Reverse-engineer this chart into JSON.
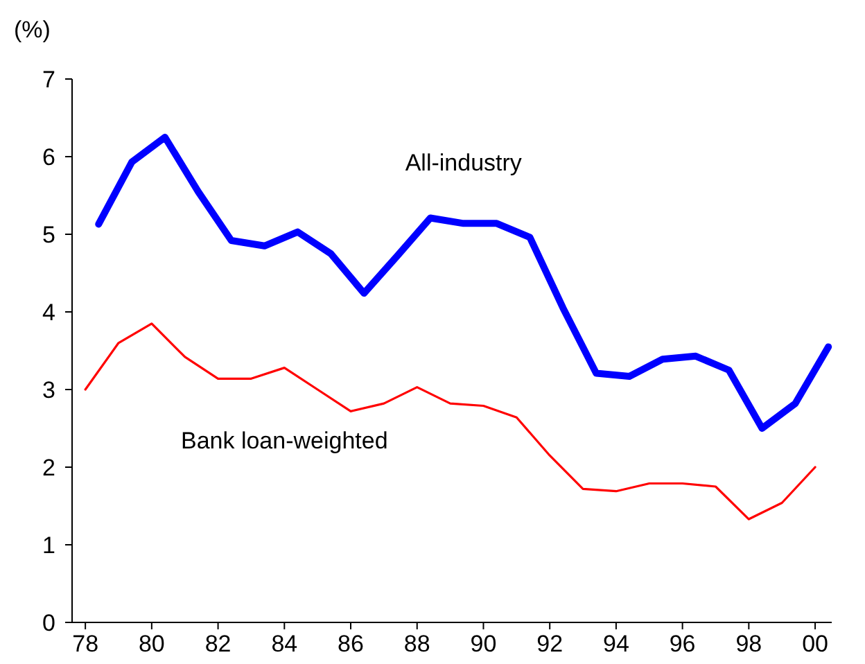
{
  "chart_data": {
    "type": "line",
    "ylabel": "(%)",
    "xlim": [
      1977.6,
      2000.5
    ],
    "xticks": [
      {
        "value": 1978,
        "label": "78"
      },
      {
        "value": 1980,
        "label": "80"
      },
      {
        "value": 1982,
        "label": "82"
      },
      {
        "value": 1984,
        "label": "84"
      },
      {
        "value": 1986,
        "label": "86"
      },
      {
        "value": 1988,
        "label": "88"
      },
      {
        "value": 1990,
        "label": "90"
      },
      {
        "value": 1992,
        "label": "92"
      },
      {
        "value": 1994,
        "label": "94"
      },
      {
        "value": 1996,
        "label": "96"
      },
      {
        "value": 1998,
        "label": "98"
      },
      {
        "value": 2000,
        "label": "00"
      }
    ],
    "ylim": [
      0,
      7
    ],
    "yticks": [
      0,
      1,
      2,
      3,
      4,
      5,
      6,
      7
    ],
    "grid": false,
    "marker": "none",
    "line_style": "solid",
    "series": [
      {
        "name": "All-industry",
        "color": "#0000ff",
        "x": [
          1978.4,
          1979.4,
          1980.4,
          1981.4,
          1982.4,
          1983.4,
          1984.4,
          1985.4,
          1986.4,
          1987.4,
          1988.4,
          1989.4,
          1990.4,
          1991.4,
          1992.4,
          1993.4,
          1994.4,
          1995.4,
          1996.4,
          1997.4,
          1998.4,
          1999.4,
          2000.4
        ],
        "values": [
          5.13,
          5.93,
          6.25,
          5.55,
          4.92,
          4.85,
          5.03,
          4.75,
          4.24,
          4.72,
          5.21,
          5.14,
          5.14,
          4.96,
          4.05,
          3.21,
          3.17,
          3.39,
          3.43,
          3.25,
          2.5,
          2.82,
          3.55
        ]
      },
      {
        "name": "Bank loan-weighted",
        "color": "#ff0000",
        "x": [
          1978,
          1979,
          1980,
          1981,
          1982,
          1983,
          1984,
          1985,
          1986,
          1987,
          1988,
          1989,
          1990,
          1991,
          1992,
          1993,
          1994,
          1995,
          1996,
          1997,
          1998,
          1999,
          2000
        ],
        "values": [
          3.0,
          3.6,
          3.85,
          3.42,
          3.14,
          3.14,
          3.28,
          3.0,
          2.72,
          2.82,
          3.03,
          2.82,
          2.79,
          2.64,
          2.15,
          1.72,
          1.69,
          1.79,
          1.79,
          1.75,
          1.33,
          1.54,
          2.0
        ]
      }
    ]
  }
}
